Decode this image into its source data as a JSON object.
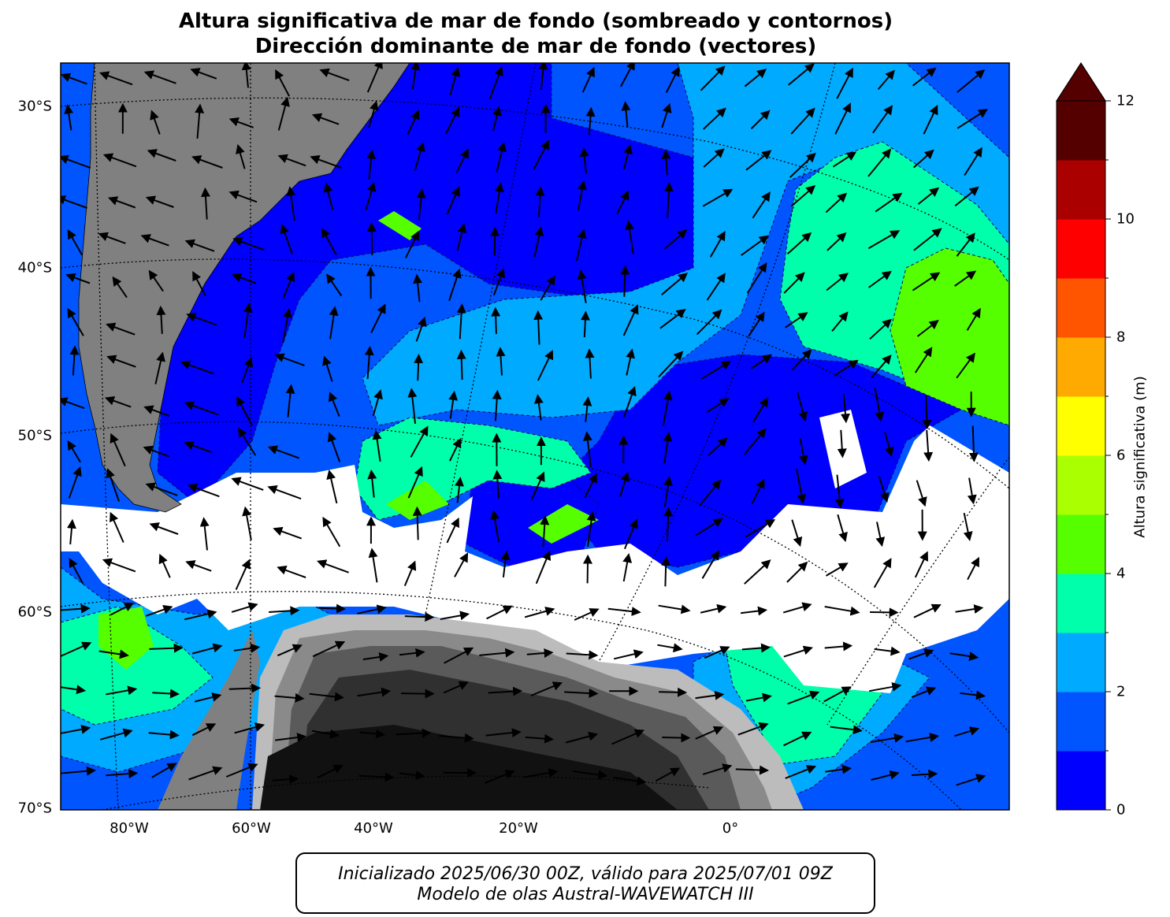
{
  "title_line1": "Altura significativa de mar de fondo (sombreado y contornos)",
  "title_line2": "Dirección dominante de mar de fondo (vectores)",
  "footer_line1": "Inicializado 2025/06/30 00Z, válido para 2025/07/01 09Z",
  "footer_line2": "Modelo de olas Austral-WAVEWATCH III",
  "colorbar": {
    "label": "Altura significativa (m)",
    "ticks": [
      "0",
      "2",
      "4",
      "6",
      "8",
      "10",
      "12"
    ],
    "colors": [
      "#0000ff",
      "#0055ff",
      "#00aaff",
      "#00ffaa",
      "#55ff00",
      "#aaff00",
      "#ffff00",
      "#ffaa00",
      "#ff5500",
      "#ff0000",
      "#aa0000",
      "#550000"
    ],
    "extend_color": "#550000"
  },
  "lat_labels": [
    "30°S",
    "40°S",
    "50°S",
    "60°S",
    "70°S"
  ],
  "lon_labels": [
    "80°W",
    "60°W",
    "40°W",
    "20°W",
    "0°"
  ],
  "land_color": "#808080",
  "ice_color": "#ffffff"
}
